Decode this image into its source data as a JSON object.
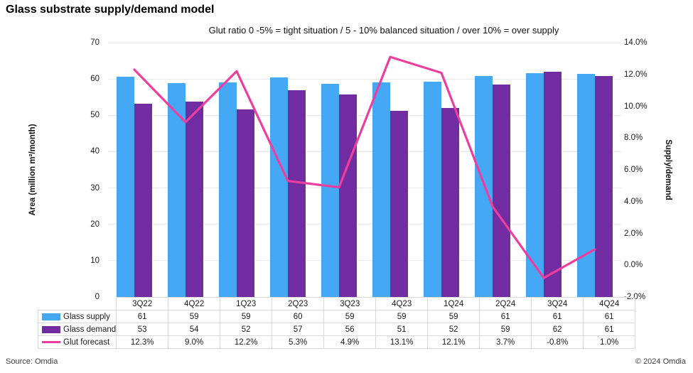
{
  "title": "Glass substrate supply/demand model",
  "subtitle": "Glut ratio 0 -5% = tight situation / 5 - 10% balanced situation / over 10% = over supply",
  "footer": {
    "source": "Source: Omdia",
    "copyright": "© 2024 Omdia"
  },
  "colors": {
    "supply": "#45A8F5",
    "demand": "#702CA0",
    "glut": "#ED3E9D",
    "gridline": "#e8e8e8",
    "table_border": "#d9d9d9"
  },
  "chart_data": {
    "type": "bar+line",
    "title": "Glass substrate supply/demand model",
    "subtitle": "Glut ratio 0 -5% = tight situation / 5 - 10% balanced situation / over 10% = over supply",
    "grid": "horizontal",
    "legend_position": "table-left",
    "categories": [
      "3Q22",
      "4Q22",
      "1Q23",
      "2Q23",
      "3Q23",
      "4Q23",
      "1Q24",
      "2Q24",
      "3Q24",
      "4Q24"
    ],
    "series": [
      {
        "name": "Glass supply",
        "type": "bar",
        "axis": "left",
        "color": "#45A8F5",
        "swatch": "bar",
        "values": [
          60.6,
          58.9,
          59.1,
          60.4,
          58.6,
          59.1,
          59.3,
          60.9,
          61.5,
          61.4
        ],
        "labels": [
          "61",
          "59",
          "59",
          "60",
          "59",
          "59",
          "59",
          "61",
          "61",
          "61"
        ]
      },
      {
        "name": "Glass demand",
        "type": "bar",
        "axis": "left",
        "color": "#702CA0",
        "swatch": "bar",
        "values": [
          53.2,
          53.7,
          51.7,
          57.0,
          55.8,
          51.3,
          52.0,
          58.5,
          62.0,
          60.9
        ],
        "labels": [
          "53",
          "54",
          "52",
          "57",
          "56",
          "51",
          "52",
          "59",
          "62",
          "61"
        ]
      },
      {
        "name": "Glut forecast",
        "type": "line",
        "axis": "right",
        "color": "#ED3E9D",
        "swatch": "line",
        "values": [
          12.3,
          9.0,
          12.2,
          5.3,
          4.9,
          13.1,
          12.1,
          3.7,
          -0.8,
          1.0
        ],
        "labels": [
          "12.3%",
          "9.0%",
          "12.2%",
          "5.3%",
          "4.9%",
          "13.1%",
          "12.1%",
          "3.7%",
          "-0.8%",
          "1.0%"
        ]
      }
    ],
    "left_axis": {
      "label": "Area (million m²/month)",
      "min": 0,
      "max": 70,
      "ticks": [
        {
          "value": 70,
          "label": "70"
        },
        {
          "value": 60,
          "label": "60"
        },
        {
          "value": 50,
          "label": "50"
        },
        {
          "value": 40,
          "label": "40"
        },
        {
          "value": 30,
          "label": "30"
        },
        {
          "value": 20,
          "label": "20"
        },
        {
          "value": 10,
          "label": "10"
        },
        {
          "value": 0,
          "label": "0"
        }
      ]
    },
    "right_axis": {
      "label": "Supply/demand",
      "min": -2,
      "max": 14,
      "ticks": [
        {
          "value": 14,
          "label": "14.0%"
        },
        {
          "value": 12,
          "label": "12.0%"
        },
        {
          "value": 10,
          "label": "10.0%"
        },
        {
          "value": 8,
          "label": "8.0%"
        },
        {
          "value": 6,
          "label": "6.0%"
        },
        {
          "value": 4,
          "label": "4.0%"
        },
        {
          "value": 2,
          "label": "2.0%"
        },
        {
          "value": 0,
          "label": "0.0%"
        },
        {
          "value": -2,
          "label": "-2.0%"
        }
      ]
    }
  }
}
